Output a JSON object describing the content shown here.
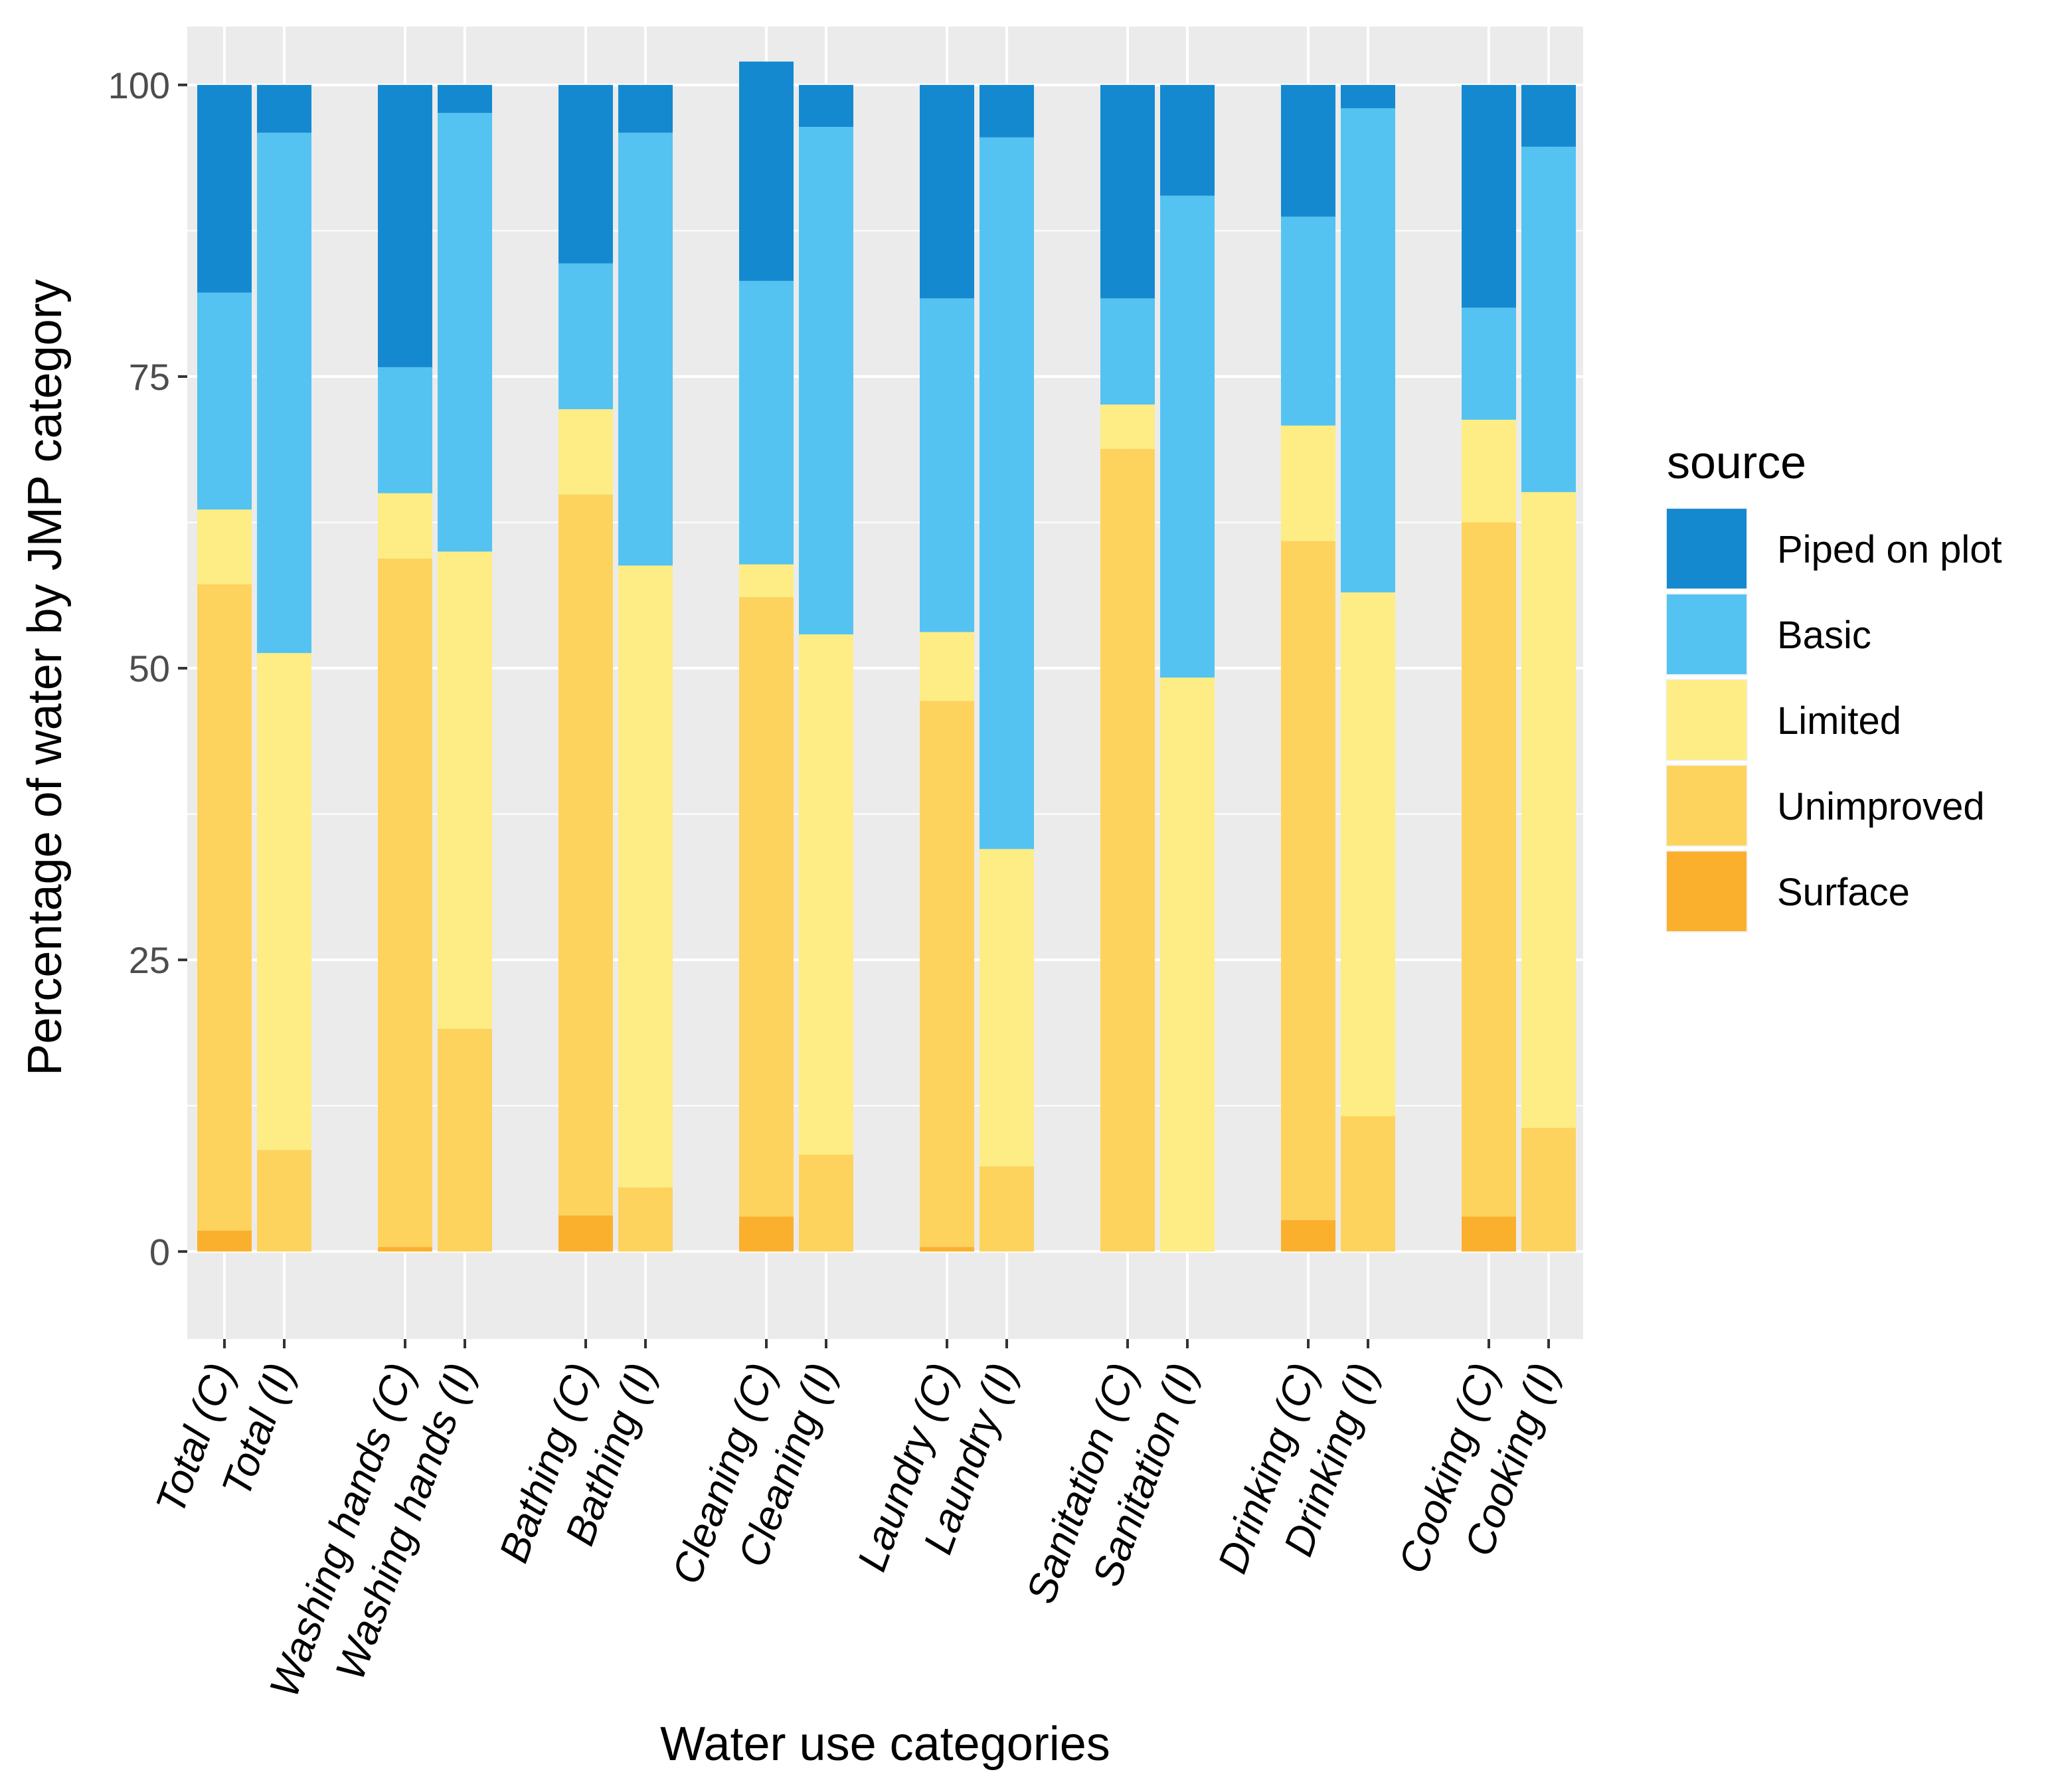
{
  "chart_data": {
    "type": "bar",
    "stacked": true,
    "xlabel": "Water use categories",
    "ylabel": "Percentage of water by JMP category",
    "ylim": [
      -7.5,
      105
    ],
    "yticks": [
      0,
      25,
      50,
      75,
      100
    ],
    "categories": [
      "Total (C)",
      "Total (I)",
      "Washing hands (C)",
      "Washing hands (I)",
      "Bathing (C)",
      "Bathing (I)",
      "Cleaning (C)",
      "Cleaning (I)",
      "Laundry (C)",
      "Laundry (I)",
      "Sanitation (C)",
      "Sanitation (I)",
      "Drinking (C)",
      "Drinking (I)",
      "Cooking (C)",
      "Cooking (I)"
    ],
    "legend": {
      "title": "source",
      "position": "right",
      "order": [
        "Piped on plot",
        "Basic",
        "Limited",
        "Unimproved",
        "Surface"
      ]
    },
    "series": [
      {
        "name": "Surface",
        "color": "#FBB02D",
        "values": [
          1.8,
          0,
          0.4,
          0,
          3.1,
          0,
          3.0,
          0,
          0.4,
          0,
          0,
          0,
          2.7,
          0,
          3.0,
          0
        ]
      },
      {
        "name": "Unimproved",
        "color": "#FDD35E",
        "values": [
          55.4,
          8.7,
          59.0,
          19.1,
          61.8,
          5.5,
          53.1,
          8.3,
          46.8,
          7.3,
          68.8,
          0,
          58.2,
          11.6,
          59.5,
          10.6
        ]
      },
      {
        "name": "Limited",
        "color": "#FDED84",
        "values": [
          6.4,
          42.6,
          5.6,
          40.9,
          7.3,
          53.3,
          2.8,
          44.6,
          5.9,
          27.2,
          3.8,
          49.2,
          9.9,
          44.9,
          8.8,
          54.5
        ]
      },
      {
        "name": "Basic",
        "color": "#54C3F1",
        "values": [
          18.6,
          44.6,
          10.8,
          37.6,
          12.5,
          37.1,
          24.3,
          43.5,
          28.6,
          61.0,
          9.1,
          41.3,
          17.9,
          41.5,
          9.6,
          29.6
        ]
      },
      {
        "name": "Piped on plot",
        "color": "#1589D0",
        "values": [
          17.8,
          4.1,
          24.2,
          2.4,
          15.3,
          4.1,
          18.8,
          3.6,
          18.3,
          4.5,
          18.3,
          9.5,
          11.3,
          2.0,
          19.1,
          5.3
        ]
      }
    ]
  }
}
